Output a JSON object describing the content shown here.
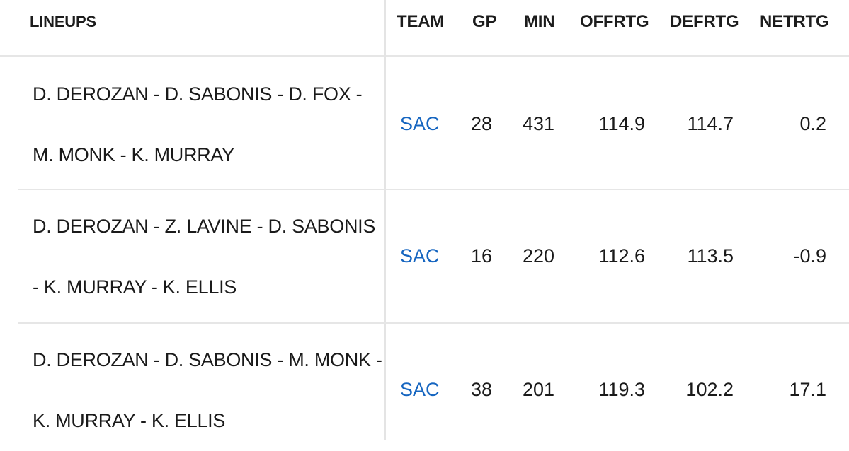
{
  "header": {
    "lineups": "LINEUPS",
    "team": "TEAM",
    "gp": "GP",
    "min": "MIN",
    "offrtg": "OFFRTG",
    "defrtg": "DEFRTG",
    "netrtg": "NETRTG"
  },
  "rows": [
    {
      "lineup_line1": "D. DEROZAN - D. SABONIS - D. FOX -",
      "lineup_line2": "M. MONK - K. MURRAY",
      "team": "SAC",
      "gp": "28",
      "min": "431",
      "offrtg": "114.9",
      "defrtg": "114.7",
      "netrtg": "0.2"
    },
    {
      "lineup_line1": "D. DEROZAN - Z. LAVINE - D. SABONIS",
      "lineup_line2": "- K. MURRAY - K. ELLIS",
      "team": "SAC",
      "gp": "16",
      "min": "220",
      "offrtg": "112.6",
      "defrtg": "113.5",
      "netrtg": "-0.9"
    },
    {
      "lineup_line1": "D. DEROZAN - D. SABONIS - M. MONK -",
      "lineup_line2": "K. MURRAY - K. ELLIS",
      "team": "SAC",
      "gp": "38",
      "min": "201",
      "offrtg": "119.3",
      "defrtg": "102.2",
      "netrtg": "17.1"
    }
  ],
  "colors": {
    "team_link": "#1565c0",
    "divider": "#e6e6e6",
    "text": "#1a1a1a"
  }
}
